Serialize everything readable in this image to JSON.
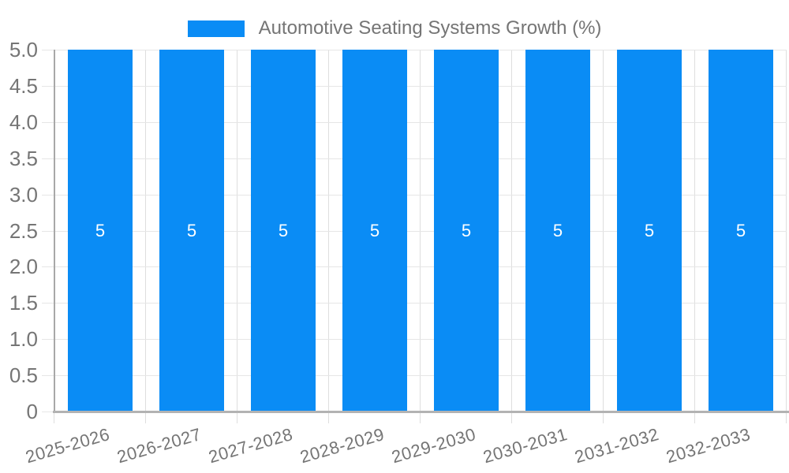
{
  "legend": {
    "label": "Automotive Seating Systems Growth (%)",
    "swatch_color": "#0a8cf5"
  },
  "chart_data": {
    "type": "bar",
    "title": "Automotive Seating Systems Growth (%)",
    "categories": [
      "2025-2026",
      "2026-2027",
      "2027-2028",
      "2028-2029",
      "2029-2030",
      "2030-2031",
      "2031-2032",
      "2032-2033"
    ],
    "series": [
      {
        "name": "Automotive Seating Systems Growth (%)",
        "values": [
          5,
          5,
          5,
          5,
          5,
          5,
          5,
          5
        ]
      }
    ],
    "bar_value_labels": [
      "5",
      "5",
      "5",
      "5",
      "5",
      "5",
      "5",
      "5"
    ],
    "xlabel": "",
    "ylabel": "",
    "ylim": [
      0,
      5
    ],
    "ytick_labels_top_to_bottom": [
      "5.0",
      "4.5",
      "4.0",
      "3.5",
      "3.0",
      "2.5",
      "2.0",
      "1.5",
      "1.0",
      "0.5",
      "0"
    ],
    "grid": true,
    "legend_position": "top-center",
    "colors": {
      "bar": "#0a8cf5",
      "bar_label": "#ffffff",
      "axis_text": "#757575",
      "h_gridline": "#e6e6e6",
      "v_gridline": "#dedede",
      "axis_line": "#b3b3b3"
    }
  }
}
